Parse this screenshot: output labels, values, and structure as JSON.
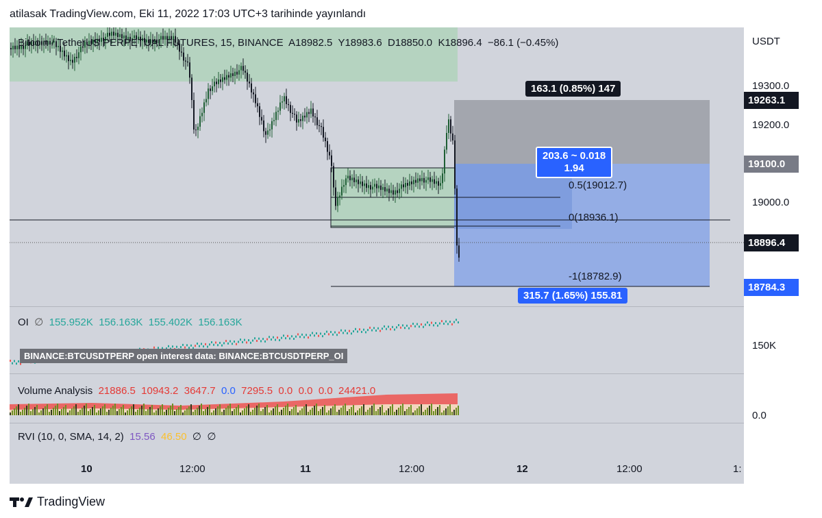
{
  "header": {
    "text": "atilasak TradingView.com, Eki 11, 2022 17:03 UTC+3 tarihinde yayınlandı"
  },
  "legend": {
    "symbol": "Bitcoin / TetherUS PERPETUAL FUTURES, 15, BINANCE",
    "open": "A18982.5",
    "high": "Y18983.6",
    "low": "D18850.0",
    "close": "K18896.4",
    "change": "−86.1 (−0.45%)"
  },
  "price_axis": {
    "currency": "USDT",
    "ticks": [
      "19300.0",
      "19200.0",
      "19000.0"
    ],
    "tags": {
      "upper": "19263.1",
      "target": "19100.0",
      "last": "18896.4",
      "stop": "18784.3"
    }
  },
  "position_tool": {
    "profit_label": "163.1 (0.85%) 147",
    "risk_reward_line1": "203.6 ~ 0.018",
    "risk_reward_line2": "1.94",
    "loss_label": "315.7 (1.65%) 155.81"
  },
  "fib_labels": {
    "half": "0.5(19012.7)",
    "zero": "0(18936.1)",
    "minus_one": "-1(18782.9)"
  },
  "oi": {
    "name": "OI",
    "icon": "eye-off-icon",
    "values": [
      "155.952K",
      "156.163K",
      "155.402K",
      "156.163K"
    ],
    "axis_tick": "150K",
    "tooltip": "BINANCE:BTCUSDTPERP open interest data: BINANCE:BTCUSDTPERP_OI",
    "colors": {
      "up": "#26a69a",
      "down": "#ef5350"
    }
  },
  "volume": {
    "name": "Volume Analysis",
    "values": [
      "21886.5",
      "10943.2",
      "3647.7",
      "0.0",
      "7295.5",
      "0.0",
      "0.0",
      "0.0",
      "24421.0"
    ],
    "axis_tick": "0.0"
  },
  "rvi": {
    "name": "RVI (10, 0, SMA, 14, 2)",
    "value1": "15.56",
    "value2": "46.50",
    "empty1": "∅",
    "empty2": "∅"
  },
  "time_axis": {
    "labels": [
      "10",
      "12:00",
      "11",
      "12:00",
      "12",
      "12:00",
      "1:"
    ]
  },
  "footer": {
    "brand": "TradingView"
  },
  "colors": {
    "pane_bg": "#d1d4dc",
    "green_zone": "#b5d3c0",
    "profit_box": "#a3a6ae",
    "risk_box": "#7f9fe0",
    "tag_blue": "#2962ff",
    "tag_grey": "#787b86",
    "tag_black": "#131722",
    "candle_up": "#1e5e34",
    "candle_down": "#131722"
  }
}
